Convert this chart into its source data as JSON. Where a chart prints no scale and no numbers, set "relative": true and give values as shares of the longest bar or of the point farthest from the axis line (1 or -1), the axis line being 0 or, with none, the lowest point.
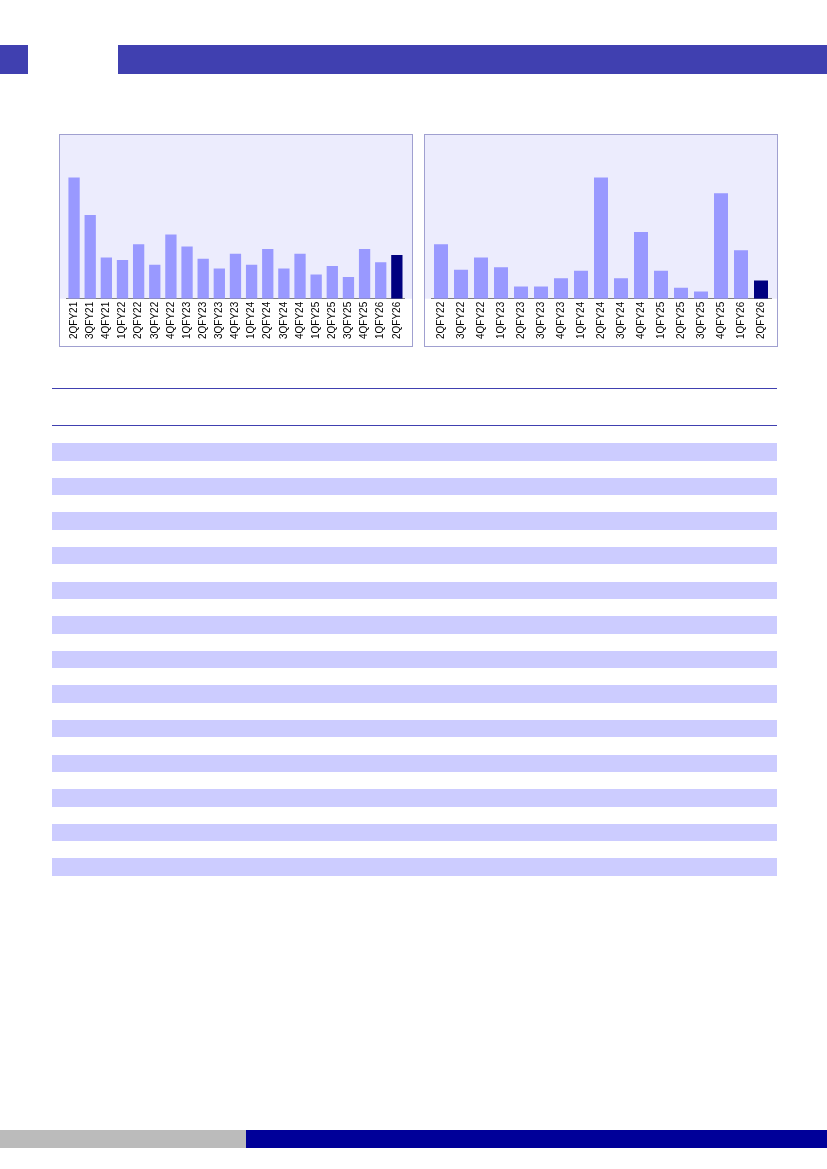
{
  "chart_data": [
    {
      "type": "bar",
      "relative": true,
      "categories": [
        "2QFY21",
        "3QFY21",
        "4QFY21",
        "1QFY22",
        "2QFY22",
        "3QFY22",
        "4QFY22",
        "1QFY23",
        "2QFY23",
        "3QFY23",
        "4QFY23",
        "1QFY24",
        "2QFY24",
        "3QFY24",
        "4QFY24",
        "1QFY25",
        "2QFY25",
        "3QFY25",
        "4QFY25",
        "1QFY26",
        "2QFY26"
      ],
      "values": [
        1,
        0.69,
        0.34,
        0.32,
        0.45,
        0.28,
        0.53,
        0.43,
        0.33,
        0.25,
        0.37,
        0.28,
        0.41,
        0.25,
        0.37,
        0.2,
        0.27,
        0.18,
        0.41,
        0.3,
        0.36
      ],
      "colors": [
        "#9999ff",
        "#9999ff",
        "#9999ff",
        "#9999ff",
        "#9999ff",
        "#9999ff",
        "#9999ff",
        "#9999ff",
        "#9999ff",
        "#9999ff",
        "#9999ff",
        "#9999ff",
        "#9999ff",
        "#9999ff",
        "#9999ff",
        "#9999ff",
        "#9999ff",
        "#9999ff",
        "#9999ff",
        "#9999ff",
        "#000080"
      ],
      "grid": false,
      "legend": false
    },
    {
      "type": "bar",
      "relative": true,
      "categories": [
        "2QFY22",
        "3QFY22",
        "4QFY22",
        "1QFY23",
        "2QFY23",
        "3QFY23",
        "4QFY23",
        "1QFY24",
        "2QFY24",
        "3QFY24",
        "4QFY24",
        "1QFY25",
        "2QFY25",
        "3QFY25",
        "4QFY25",
        "1QFY26",
        "2QFY26"
      ],
      "values": [
        0.45,
        0.24,
        0.34,
        0.26,
        0.1,
        0.1,
        0.17,
        0.23,
        1,
        0.17,
        0.55,
        0.23,
        0.09,
        0.06,
        0.87,
        0.4,
        0.15
      ],
      "colors": [
        "#9999ff",
        "#9999ff",
        "#9999ff",
        "#9999ff",
        "#9999ff",
        "#9999ff",
        "#9999ff",
        "#9999ff",
        "#9999ff",
        "#9999ff",
        "#9999ff",
        "#9999ff",
        "#9999ff",
        "#9999ff",
        "#9999ff",
        "#9999ff",
        "#000080"
      ],
      "grid": false,
      "legend": false
    }
  ]
}
